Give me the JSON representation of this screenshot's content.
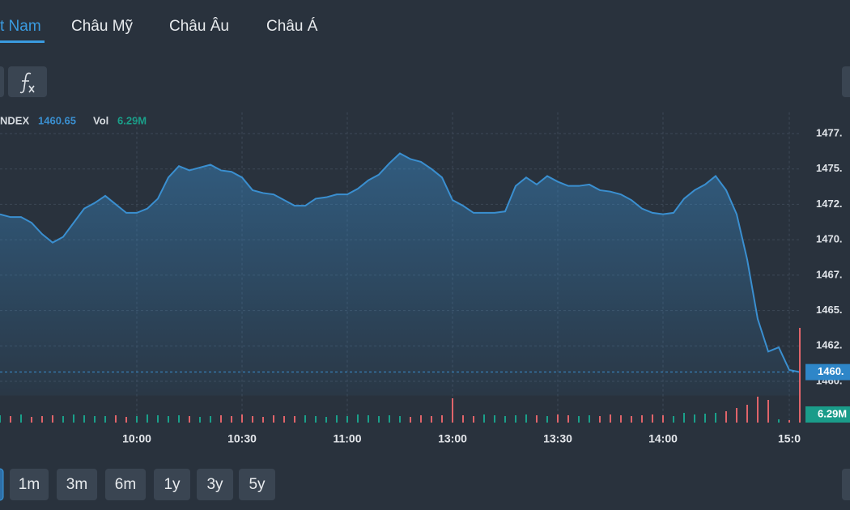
{
  "tabs": [
    "t Nam",
    "Châu Mỹ",
    "Châu Âu",
    "Châu Á"
  ],
  "active_tab": 0,
  "ranges": [
    "1m",
    "3m",
    "6m",
    "1y",
    "3y",
    "5y"
  ],
  "chart_data": {
    "type": "area",
    "symbol": "NDEX",
    "volume_name": "Vol",
    "volume_label": "6.29M",
    "last_tag": "1460.",
    "color": "#3a8fd0",
    "volume_colors": {
      "up": "#1aa08a",
      "down": "#e0646a"
    },
    "categories": [
      null,
      null,
      null,
      null,
      null,
      null,
      null,
      null,
      null,
      null,
      null,
      null,
      null,
      "10:00",
      null,
      null,
      null,
      null,
      null,
      null,
      null,
      null,
      null,
      "10:30",
      null,
      null,
      null,
      null,
      null,
      null,
      null,
      null,
      null,
      "11:00",
      null,
      null,
      null,
      null,
      null,
      null,
      null,
      null,
      null,
      "13:00",
      null,
      null,
      null,
      null,
      null,
      null,
      null,
      null,
      null,
      "13:30",
      null,
      null,
      null,
      null,
      null,
      null,
      null,
      null,
      null,
      "14:00",
      null,
      null,
      null,
      null,
      null,
      null,
      null,
      null,
      null,
      null,
      null,
      "15:0",
      null
    ],
    "values": [
      1471.8,
      1471.6,
      1471.6,
      1471.2,
      1470.4,
      1469.8,
      1470.2,
      1471.2,
      1472.2,
      1472.6,
      1473.1,
      1472.5,
      1471.9,
      1471.9,
      1472.2,
      1472.9,
      1474.4,
      1475.2,
      1474.9,
      1475.1,
      1475.3,
      1474.9,
      1474.8,
      1474.4,
      1473.5,
      1473.3,
      1473.2,
      1472.8,
      1472.4,
      1472.4,
      1472.9,
      1473.0,
      1473.2,
      1473.2,
      1473.6,
      1474.2,
      1474.6,
      1475.4,
      1476.1,
      1475.7,
      1475.5,
      1475.0,
      1474.4,
      1472.8,
      1472.4,
      1471.9,
      1471.9,
      1471.9,
      1472.0,
      1473.8,
      1474.4,
      1473.9,
      1474.5,
      1474.1,
      1473.8,
      1473.8,
      1473.9,
      1473.5,
      1473.4,
      1473.2,
      1472.8,
      1472.2,
      1471.9,
      1471.8,
      1471.9,
      1472.9,
      1473.5,
      1473.9,
      1474.5,
      1473.5,
      1471.8,
      1468.6,
      1464.4,
      1462.1,
      1462.4,
      1460.8,
      1460.65
    ],
    "volume": [
      9,
      8,
      10,
      7,
      8,
      9,
      8,
      10,
      9,
      8,
      8,
      9,
      7,
      8,
      10,
      9,
      8,
      9,
      8,
      7,
      8,
      9,
      8,
      10,
      8,
      7,
      9,
      8,
      8,
      9,
      8,
      7,
      9,
      8,
      10,
      9,
      8,
      9,
      8,
      7,
      9,
      8,
      9,
      30,
      9,
      8,
      10,
      9,
      8,
      9,
      10,
      9,
      8,
      10,
      9,
      8,
      9,
      8,
      10,
      9,
      8,
      9,
      10,
      9,
      8,
      12,
      10,
      11,
      12,
      14,
      18,
      22,
      32,
      28,
      4,
      3,
      117
    ],
    "ylim": [
      1459,
      1479
    ],
    "yticks": [
      {
        "value": 1460,
        "label": "1460."
      },
      {
        "value": 1462.5,
        "label": "1462."
      },
      {
        "value": 1465,
        "label": "1465."
      },
      {
        "value": 1467.5,
        "label": "1467."
      },
      {
        "value": 1470,
        "label": "1470."
      },
      {
        "value": 1472.5,
        "label": "1472."
      },
      {
        "value": 1475,
        "label": "1475."
      },
      {
        "value": 1477.5,
        "label": "1477."
      }
    ],
    "grid": true
  }
}
